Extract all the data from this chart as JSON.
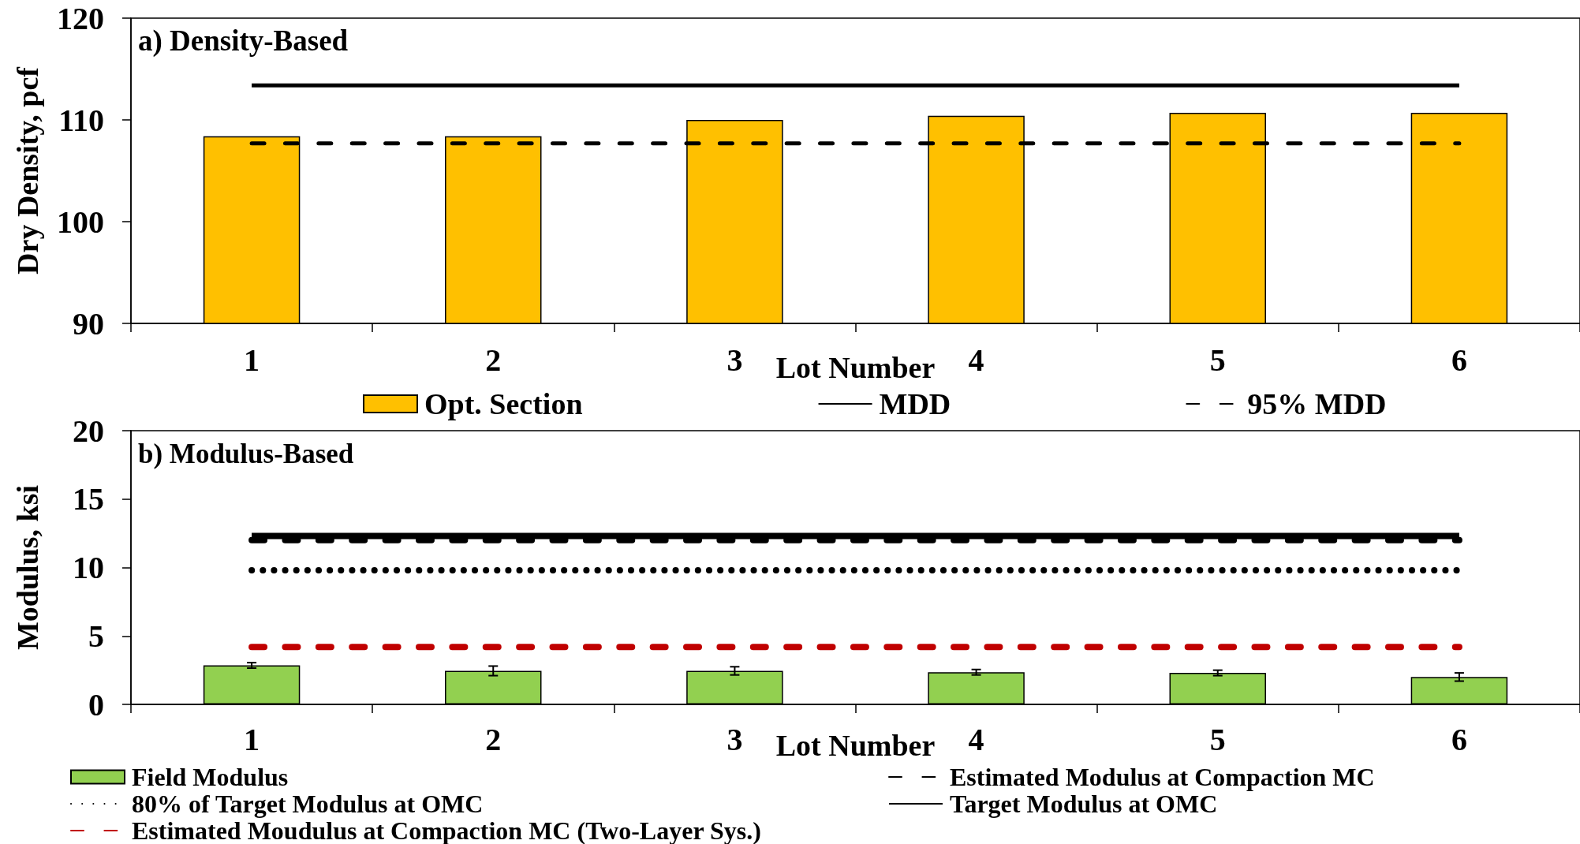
{
  "chart_data": [
    {
      "type": "bar",
      "title": "a) Density-Based",
      "xlabel": "Lot Number",
      "ylabel": "Dry Density, pcf",
      "categories": [
        "1",
        "2",
        "3",
        "4",
        "5",
        "6"
      ],
      "series": [
        {
          "name": "Opt. Section",
          "color": "#ffc000",
          "values": [
            108.4,
            108.4,
            110.0,
            110.4,
            110.7,
            110.7
          ]
        },
        {
          "name": "MDD",
          "type": "line",
          "color": "#000000",
          "line_style": "solid",
          "values": [
            113.4,
            113.4,
            113.4,
            113.4,
            113.4,
            113.4
          ]
        },
        {
          "name": "95% MDD",
          "type": "line",
          "color": "#000000",
          "line_style": "dashed",
          "values": [
            107.7,
            107.7,
            107.7,
            107.7,
            107.7,
            107.7
          ]
        }
      ],
      "ylim": [
        90,
        120
      ],
      "yticks": [
        90,
        100,
        110,
        120
      ],
      "grid": false,
      "legend": "bottom",
      "marker": "none"
    },
    {
      "type": "bar",
      "title": "b) Modulus-Based",
      "xlabel": "Lot Number",
      "ylabel": "Modulus, ksi",
      "categories": [
        "1",
        "2",
        "3",
        "4",
        "5",
        "6"
      ],
      "series": [
        {
          "name": "Field Modulus",
          "color": "#92d050",
          "values": [
            2.85,
            2.45,
            2.45,
            2.35,
            2.3,
            2.0
          ],
          "errors": [
            0.2,
            0.35,
            0.3,
            0.2,
            0.2,
            0.3
          ]
        },
        {
          "name": "Estimated Modulus at Compaction MC",
          "type": "line",
          "color": "#000000",
          "line_style": "dashed",
          "values": [
            12.0,
            12.0,
            12.0,
            12.0,
            12.0,
            12.0
          ]
        },
        {
          "name": "80% of Target Modulus at OMC",
          "type": "line",
          "color": "#000000",
          "line_style": "dotted",
          "values": [
            9.8,
            9.8,
            9.8,
            9.8,
            9.8,
            9.8
          ]
        },
        {
          "name": "Target Modulus at OMC",
          "type": "line",
          "color": "#000000",
          "line_style": "solid",
          "values": [
            12.3,
            12.3,
            12.3,
            12.3,
            12.3,
            12.3
          ]
        },
        {
          "name": "Estimated Moudulus at Compaction MC (Two-Layer Sys.)",
          "type": "line",
          "color": "#c00000",
          "line_style": "dashed",
          "values": [
            4.2,
            4.2,
            4.2,
            4.2,
            4.2,
            4.2
          ]
        }
      ],
      "ylim": [
        0,
        20
      ],
      "yticks": [
        0,
        5,
        10,
        15,
        20
      ],
      "grid": false,
      "legend": "bottom",
      "marker": "none"
    }
  ]
}
